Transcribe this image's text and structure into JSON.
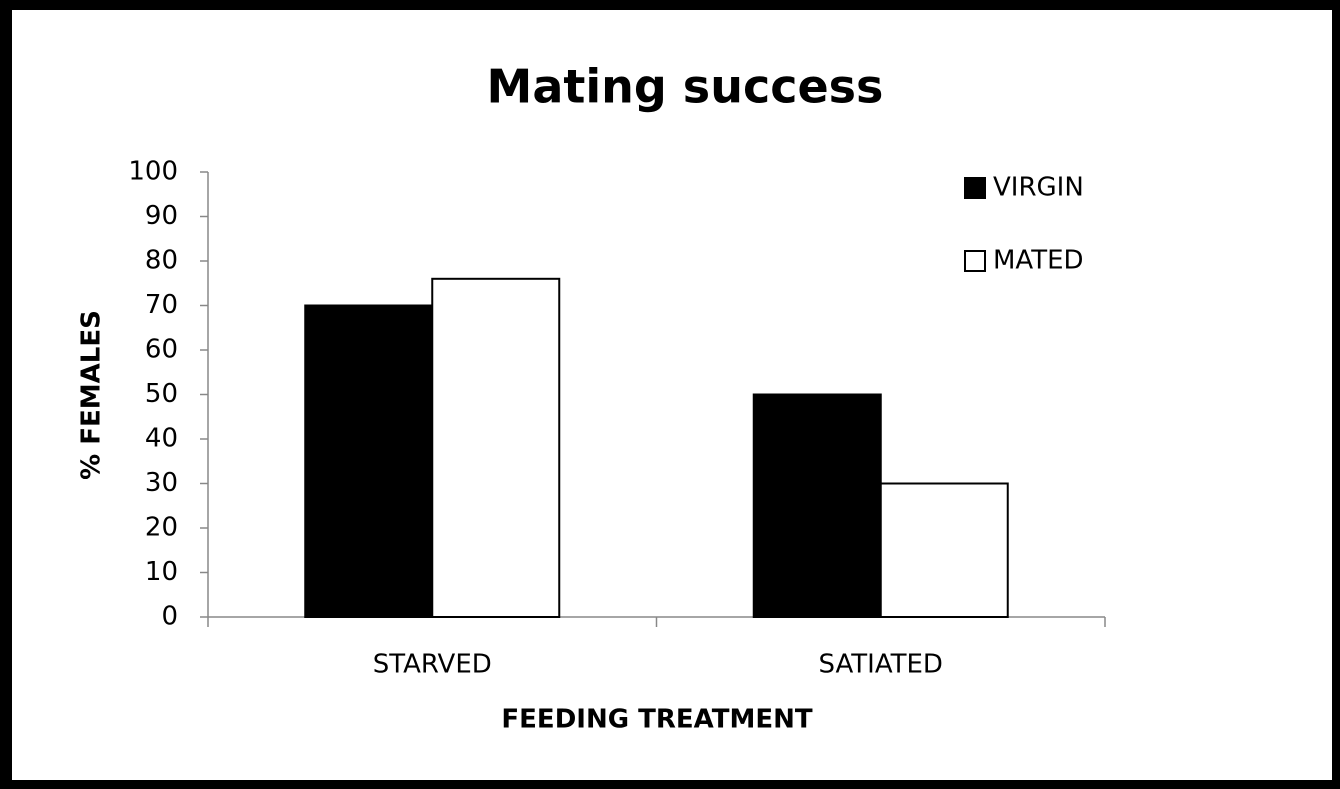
{
  "chart_data": {
    "type": "bar",
    "title": "Mating success",
    "x_label": "FEEDING TREATMENT",
    "y_label": "% FEMALES",
    "categories": [
      "STARVED",
      "SATIATED"
    ],
    "series": [
      {
        "name": "VIRGIN",
        "color": "#000000",
        "values": [
          70,
          50
        ]
      },
      {
        "name": "MATED",
        "color": "#ffffff",
        "values": [
          76,
          30
        ]
      }
    ],
    "ylim": [
      0,
      100
    ],
    "yticks": [
      0,
      10,
      20,
      30,
      40,
      50,
      60,
      70,
      80,
      90,
      100
    ],
    "grid": false,
    "legend": "upper right"
  }
}
